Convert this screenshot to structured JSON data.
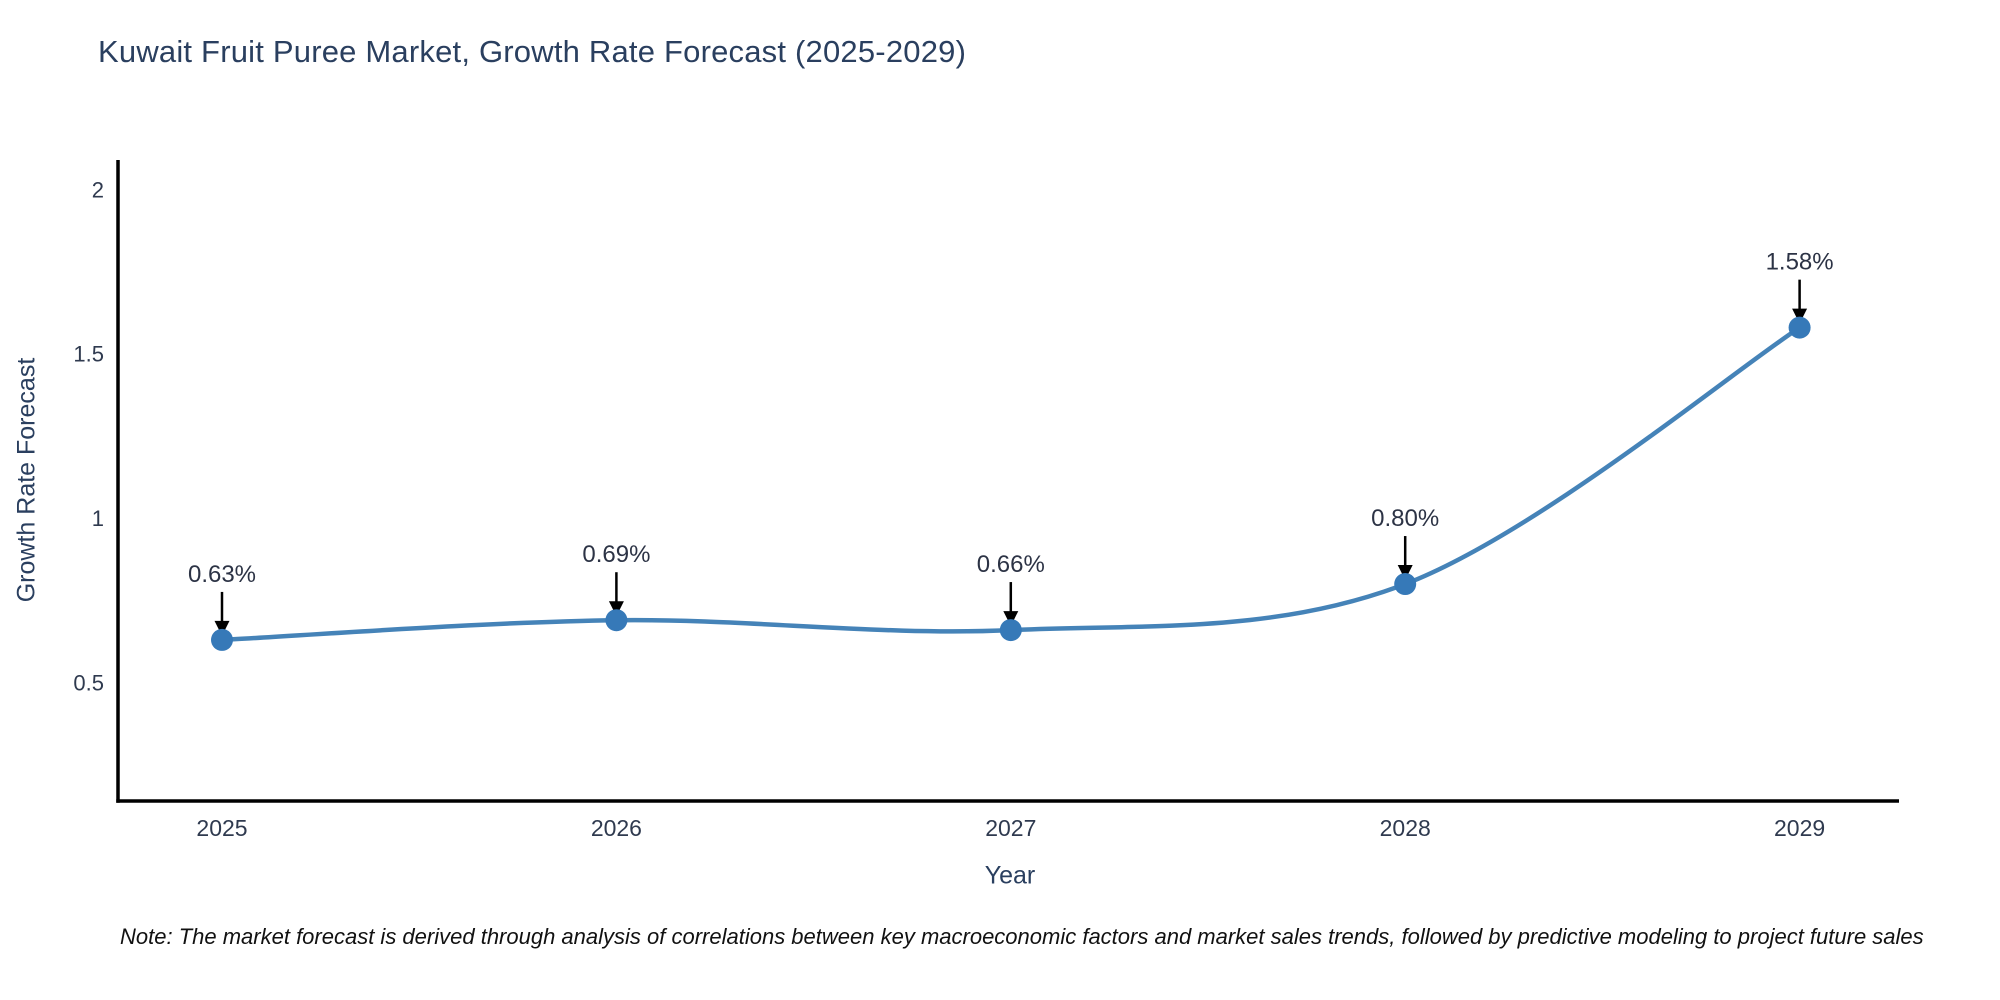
{
  "title": "Kuwait Fruit Puree Market, Growth Rate Forecast (2025-2029)",
  "note": "Note: The market forecast is derived through analysis of correlations between key macroeconomic factors and market sales trends, followed by predictive modeling to project future sales",
  "chart_data": {
    "type": "line",
    "title": "Kuwait Fruit Puree Market, Growth Rate Forecast (2025-2029)",
    "xlabel": "Year",
    "ylabel": "Growth Rate Forecast",
    "categories": [
      "2025",
      "2026",
      "2027",
      "2028",
      "2029"
    ],
    "series": [
      {
        "name": "Growth Rate Forecast",
        "values": [
          0.63,
          0.69,
          0.66,
          0.8,
          1.58
        ]
      }
    ],
    "point_labels": [
      "0.63%",
      "0.69%",
      "0.66%",
      "0.80%",
      "1.58%"
    ],
    "ytick_values": [
      0.5,
      1,
      1.5,
      2
    ],
    "ytick_labels": [
      "0.5",
      "1",
      "1.5",
      "2"
    ],
    "ylim": [
      0.14,
      2.09
    ],
    "grid": false,
    "legend": "none",
    "line_shape": "spline",
    "colors": {
      "line": "#4583b8",
      "marker": "#3679b8",
      "axis": "#000000",
      "arrow": "#000000",
      "title_text": "#2a3f5f",
      "tick_text": "#2f3a4f",
      "annotation_text": "#2c3345",
      "note_text": "#111111"
    }
  }
}
